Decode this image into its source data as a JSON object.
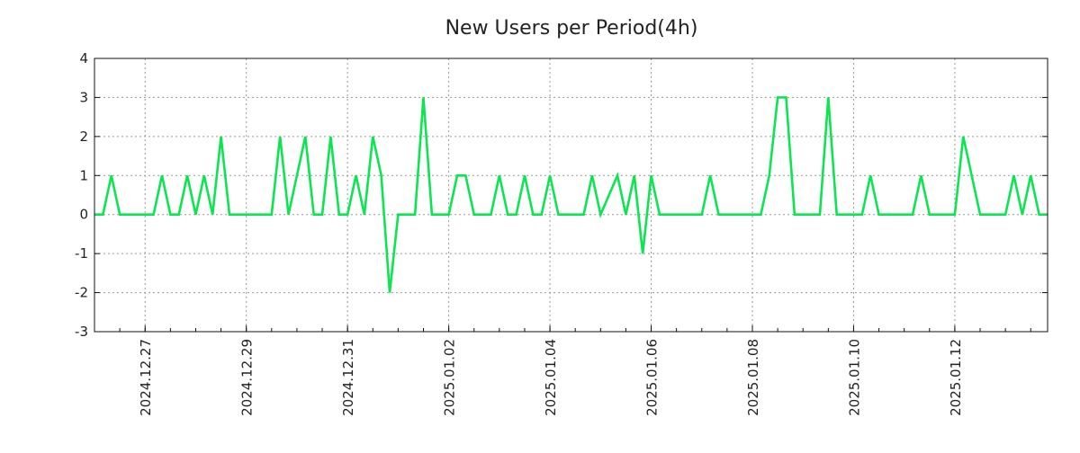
{
  "chart_data": {
    "type": "line",
    "title": "New Users per Period(4h)",
    "xlabel": "",
    "ylabel": "",
    "x_start": "2024-12-26 00:00",
    "interval_hours": 4,
    "ylim": [
      -3,
      4
    ],
    "yticks": [
      -3,
      -2,
      -1,
      0,
      1,
      2,
      3,
      4
    ],
    "xticks": [
      {
        "label": "2024.12.27",
        "day_offset": 1
      },
      {
        "label": "2024.12.29",
        "day_offset": 3
      },
      {
        "label": "2024.12.31",
        "day_offset": 5
      },
      {
        "label": "2025.01.02",
        "day_offset": 7
      },
      {
        "label": "2025.01.04",
        "day_offset": 9
      },
      {
        "label": "2025.01.06",
        "day_offset": 11
      },
      {
        "label": "2025.01.08",
        "day_offset": 13
      },
      {
        "label": "2025.01.10",
        "day_offset": 15
      },
      {
        "label": "2025.01.12",
        "day_offset": 17
      }
    ],
    "grid": true,
    "series": [
      {
        "name": "New Users",
        "color": "#0be650",
        "values": [
          0,
          0,
          1,
          0,
          0,
          0,
          0,
          0,
          1,
          0,
          0,
          1,
          0,
          1,
          0,
          2,
          0,
          0,
          0,
          0,
          0,
          0,
          2,
          0,
          1,
          2,
          0,
          0,
          2,
          0,
          0,
          1,
          0,
          2,
          1,
          -2,
          0,
          0,
          0,
          3,
          0,
          0,
          0,
          1,
          1,
          0,
          0,
          0,
          1,
          0,
          0,
          1,
          0,
          0,
          1,
          0,
          0,
          0,
          0,
          1,
          0,
          null,
          1,
          0,
          1,
          -1,
          1,
          0,
          0,
          0,
          0,
          0,
          0,
          1,
          0,
          0,
          0,
          0,
          0,
          0,
          1,
          3,
          3,
          0,
          0,
          0,
          0,
          3,
          0,
          0,
          0,
          0,
          1,
          0,
          0,
          0,
          0,
          0,
          1,
          0,
          0,
          0,
          0,
          2,
          1,
          0,
          0,
          0,
          0,
          1,
          0,
          1,
          0,
          0
        ]
      }
    ]
  }
}
